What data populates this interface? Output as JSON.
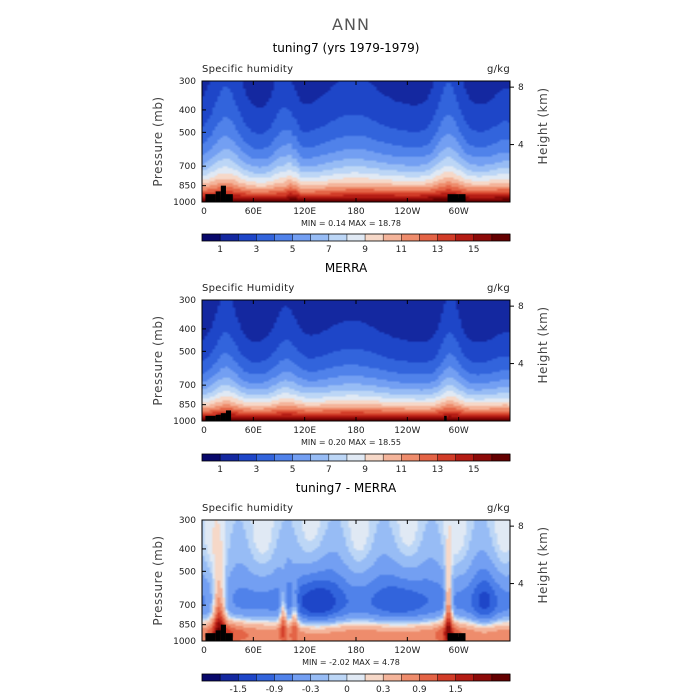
{
  "figure": {
    "title": "ANN",
    "land_color": "#000000"
  },
  "chart_data": [
    {
      "type": "heatmap",
      "title": "tuning7 (yrs 1979-1979)",
      "variable": "Specific humidity",
      "units": "g/kg",
      "ylabel": "Pressure (mb)",
      "ylabel_right": "Height (km)",
      "x_ticks": [
        "0",
        "60E",
        "120E",
        "180",
        "120W",
        "60W"
      ],
      "x_range_deg": [
        0,
        360
      ],
      "pressure_ticks": [
        "300",
        "400",
        "500",
        "700",
        "850",
        "1000"
      ],
      "pressure_range_mb": [
        300,
        1000
      ],
      "y_axis_scale": "log-pressure",
      "height_ticks": [
        "8",
        "4"
      ],
      "stats": "MIN =   0.14   MAX =   18.78",
      "min": 0.14,
      "max": 18.78,
      "colorbar_labels": [
        "1",
        "3",
        "5",
        "7",
        "9",
        "11",
        "13",
        "15"
      ],
      "colorbar_levels": [
        0,
        1,
        2,
        3,
        4,
        5,
        6,
        7,
        8,
        9,
        10,
        11,
        12,
        13,
        14,
        15,
        16
      ],
      "colormap": "diverging",
      "colors": [
        "#08086b",
        "#1428a0",
        "#1e46c8",
        "#3264dc",
        "#5082ea",
        "#739ff2",
        "#97bcf5",
        "#bcd6f6",
        "#e0e9f4",
        "#f6d8c8",
        "#f4b49a",
        "#ee8c6c",
        "#e46446",
        "#d23c28",
        "#b41c14",
        "#8c0a08",
        "#640000"
      ]
    },
    {
      "type": "heatmap",
      "title": "MERRA",
      "variable": "Specific Humidity",
      "units": "g/kg",
      "ylabel": "Pressure (mb)",
      "ylabel_right": "Height (km)",
      "x_ticks": [
        "0",
        "60E",
        "120E",
        "180",
        "120W",
        "60W"
      ],
      "x_range_deg": [
        0,
        360
      ],
      "pressure_ticks": [
        "300",
        "400",
        "500",
        "700",
        "850",
        "1000"
      ],
      "pressure_range_mb": [
        300,
        1000
      ],
      "y_axis_scale": "log-pressure",
      "height_ticks": [
        "8",
        "4"
      ],
      "stats": "MIN =   0.20   MAX =   18.55",
      "min": 0.2,
      "max": 18.55,
      "colorbar_labels": [
        "1",
        "3",
        "5",
        "7",
        "9",
        "11",
        "13",
        "15"
      ],
      "colorbar_levels": [
        0,
        1,
        2,
        3,
        4,
        5,
        6,
        7,
        8,
        9,
        10,
        11,
        12,
        13,
        14,
        15,
        16
      ],
      "colormap": "diverging",
      "colors": [
        "#08086b",
        "#1428a0",
        "#1e46c8",
        "#3264dc",
        "#5082ea",
        "#739ff2",
        "#97bcf5",
        "#bcd6f6",
        "#e0e9f4",
        "#f6d8c8",
        "#f4b49a",
        "#ee8c6c",
        "#e46446",
        "#d23c28",
        "#b41c14",
        "#8c0a08",
        "#640000"
      ]
    },
    {
      "type": "heatmap",
      "title": "tuning7 - MERRA",
      "variable": "Specific humidity",
      "units": "g/kg",
      "ylabel": "Pressure (mb)",
      "ylabel_right": "Height (km)",
      "x_ticks": [
        "0",
        "60E",
        "120E",
        "180",
        "120W",
        "60W"
      ],
      "x_range_deg": [
        0,
        360
      ],
      "pressure_ticks": [
        "300",
        "400",
        "500",
        "700",
        "850",
        "1000"
      ],
      "pressure_range_mb": [
        300,
        1000
      ],
      "y_axis_scale": "log-pressure",
      "height_ticks": [
        "8",
        "4"
      ],
      "stats": "MIN =  -2.02   MAX =   4.78",
      "min": -2.02,
      "max": 4.78,
      "colorbar_labels": [
        "-1.5",
        "-0.9",
        "-0.3",
        "0",
        "0.3",
        "0.9",
        "1.5"
      ],
      "colorbar_levels": [
        -2.1,
        -1.8,
        -1.5,
        -1.2,
        -0.9,
        -0.6,
        -0.3,
        -0.1,
        0,
        0.1,
        0.3,
        0.6,
        0.9,
        1.2,
        1.5,
        1.8,
        2.1
      ],
      "colormap": "diverging",
      "colors": [
        "#08086b",
        "#1428a0",
        "#1e46c8",
        "#3264dc",
        "#5082ea",
        "#739ff2",
        "#97bcf5",
        "#bcd6f6",
        "#e0e9f4",
        "#f6d8c8",
        "#f4b49a",
        "#ee8c6c",
        "#e46446",
        "#d23c28",
        "#b41c14",
        "#8c0a08",
        "#640000"
      ]
    }
  ]
}
